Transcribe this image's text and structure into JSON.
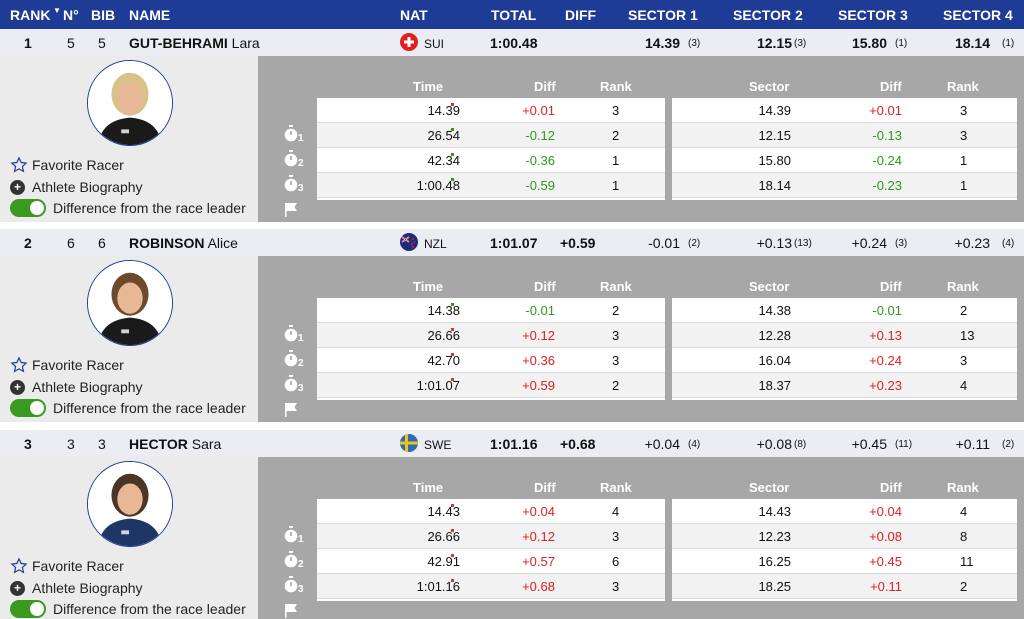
{
  "header": {
    "rank": "RANK",
    "no": "N°",
    "bib": "BIB",
    "name": "NAME",
    "nat": "NAT",
    "total": "TOTAL",
    "diff": "DIFF",
    "sector1": "SECTOR 1",
    "sector2": "SECTOR 2",
    "sector3": "SECTOR 3",
    "sector4": "SECTOR 4"
  },
  "table_headers": {
    "time": "Time",
    "diff": "Diff",
    "rank": "Rank",
    "sector": "Sector"
  },
  "links": {
    "favorite": "Favorite Racer",
    "biography": "Athlete Biography",
    "difference": "Difference from the race leader"
  },
  "colors": {
    "header_bg": "#1e3b96",
    "positive": "#e02020",
    "negative": "#2e9a1a"
  },
  "racers": [
    {
      "rank": "1",
      "no": "5",
      "bib": "5",
      "surname": "GUT-BEHRAMI",
      "firstname": "Lara",
      "nat": "SUI",
      "flag": "swiss-flag-icon",
      "total": "1:00.48",
      "diff": "",
      "s1": "14.39",
      "s1r": "(3)",
      "s2": "12.15",
      "s2r": "(3)",
      "s3": "15.80",
      "s3r": "(1)",
      "s4": "18.14",
      "s4r": "(1)",
      "splits": [
        {
          "time": "14.39",
          "diff": "+0.01",
          "rank": "3",
          "sector": "14.39",
          "sdiff": "+0.01",
          "srank": "3"
        },
        {
          "time": "26.54",
          "diff": "-0.12",
          "rank": "2",
          "sector": "12.15",
          "sdiff": "-0.13",
          "srank": "3"
        },
        {
          "time": "42.34",
          "diff": "-0.36",
          "rank": "1",
          "sector": "15.80",
          "sdiff": "-0.24",
          "srank": "1"
        },
        {
          "time": "1:00.48",
          "diff": "-0.59",
          "rank": "1",
          "sector": "18.14",
          "sdiff": "-0.23",
          "srank": "1"
        }
      ]
    },
    {
      "rank": "2",
      "no": "6",
      "bib": "6",
      "surname": "ROBINSON",
      "firstname": "Alice",
      "nat": "NZL",
      "flag": "nz-flag-icon",
      "total": "1:01.07",
      "diff": "+0.59",
      "s1": "-0.01",
      "s1r": "(2)",
      "s2": "+0.13",
      "s2r": "(13)",
      "s3": "+0.24",
      "s3r": "(3)",
      "s4": "+0.23",
      "s4r": "(4)",
      "splits": [
        {
          "time": "14.38",
          "diff": "-0.01",
          "rank": "2",
          "sector": "14.38",
          "sdiff": "-0.01",
          "srank": "2"
        },
        {
          "time": "26.66",
          "diff": "+0.12",
          "rank": "3",
          "sector": "12.28",
          "sdiff": "+0.13",
          "srank": "13"
        },
        {
          "time": "42.70",
          "diff": "+0.36",
          "rank": "3",
          "sector": "16.04",
          "sdiff": "+0.24",
          "srank": "3"
        },
        {
          "time": "1:01.07",
          "diff": "+0.59",
          "rank": "2",
          "sector": "18.37",
          "sdiff": "+0.23",
          "srank": "4"
        }
      ]
    },
    {
      "rank": "3",
      "no": "3",
      "bib": "3",
      "surname": "HECTOR",
      "firstname": "Sara",
      "nat": "SWE",
      "flag": "sweden-flag-icon",
      "total": "1:01.16",
      "diff": "+0.68",
      "s1": "+0.04",
      "s1r": "(4)",
      "s2": "+0.08",
      "s2r": "(8)",
      "s3": "+0.45",
      "s3r": "(11)",
      "s4": "+0.11",
      "s4r": "(2)",
      "splits": [
        {
          "time": "14.43",
          "diff": "+0.04",
          "rank": "4",
          "sector": "14.43",
          "sdiff": "+0.04",
          "srank": "4"
        },
        {
          "time": "26.66",
          "diff": "+0.12",
          "rank": "3",
          "sector": "12.23",
          "sdiff": "+0.08",
          "srank": "8"
        },
        {
          "time": "42.91",
          "diff": "+0.57",
          "rank": "6",
          "sector": "16.25",
          "sdiff": "+0.45",
          "srank": "11"
        },
        {
          "time": "1:01.16",
          "diff": "+0.68",
          "rank": "3",
          "sector": "18.25",
          "sdiff": "+0.11",
          "srank": "2"
        }
      ]
    }
  ],
  "split_labels": [
    "1",
    "2",
    "3"
  ]
}
